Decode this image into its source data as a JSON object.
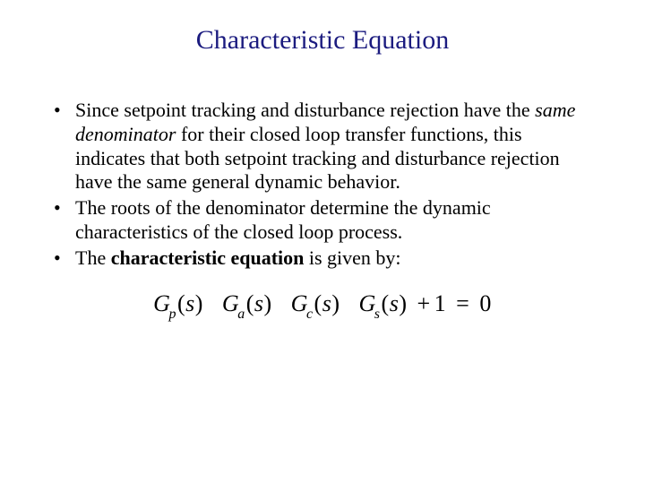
{
  "slide": {
    "title": "Characteristic Equation",
    "title_color": "#1b1b7f",
    "title_fontsize": 30,
    "body_fontsize": 22,
    "body_color": "#000000",
    "background_color": "#ffffff",
    "bullets": [
      {
        "runs": [
          {
            "text": "Since setpoint tracking and disturbance rejection have the ",
            "style": "normal"
          },
          {
            "text": "same denominator",
            "style": "italic"
          },
          {
            "text": " for their closed loop transfer functions, this indicates that both setpoint tracking and disturbance rejection have the same general dynamic behavior.",
            "style": "normal"
          }
        ]
      },
      {
        "runs": [
          {
            "text": "The roots of the denominator determine the dynamic characteristics of the closed loop process.",
            "style": "normal"
          }
        ]
      },
      {
        "runs": [
          {
            "text": "The ",
            "style": "normal"
          },
          {
            "text": "characteristic equation",
            "style": "bold"
          },
          {
            "text": " is given by:",
            "style": "normal"
          }
        ]
      }
    ],
    "equation": {
      "fontsize": 26,
      "font_style": "italic",
      "terms": [
        {
          "sym": "G",
          "sub": "p",
          "arg": "s"
        },
        {
          "sym": "G",
          "sub": "a",
          "arg": "s"
        },
        {
          "sym": "G",
          "sub": "c",
          "arg": "s"
        },
        {
          "sym": "G",
          "sub": "s",
          "arg": "s"
        }
      ],
      "tail_plus": "+",
      "tail_one": "1",
      "tail_eq": "=",
      "tail_zero": "0"
    }
  }
}
